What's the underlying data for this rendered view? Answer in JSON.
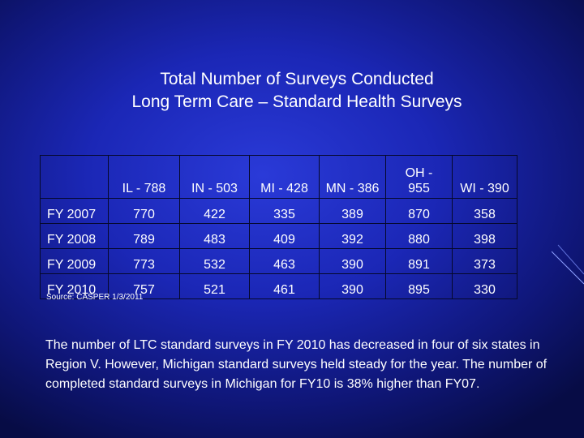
{
  "slide": {
    "title_line1": "Total Number of Surveys Conducted",
    "title_line2": "Long Term Care – Standard Health Surveys",
    "source": "Source: CASPER 1/3/2011",
    "note": "The number of LTC standard surveys in FY 2010 has decreased in four of six states in Region V. However, Michigan standard surveys held steady for the year. The number of completed standard surveys in Michigan for FY10 is 38% higher than FY07."
  },
  "table": {
    "headers": [
      "",
      "IL - 788",
      "IN - 503",
      "MI - 428",
      "MN - 386",
      "OH - 955",
      "WI - 390"
    ],
    "rows": [
      {
        "label": "FY 2007",
        "values": [
          "770",
          "422",
          "335",
          "389",
          "870",
          "358"
        ]
      },
      {
        "label": "FY 2008",
        "values": [
          "789",
          "483",
          "409",
          "392",
          "880",
          "398"
        ]
      },
      {
        "label": "FY 2009",
        "values": [
          "773",
          "532",
          "463",
          "390",
          "891",
          "373"
        ]
      },
      {
        "label": "FY 2010",
        "values": [
          "757",
          "521",
          "461",
          "390",
          "895",
          "330"
        ]
      }
    ]
  }
}
